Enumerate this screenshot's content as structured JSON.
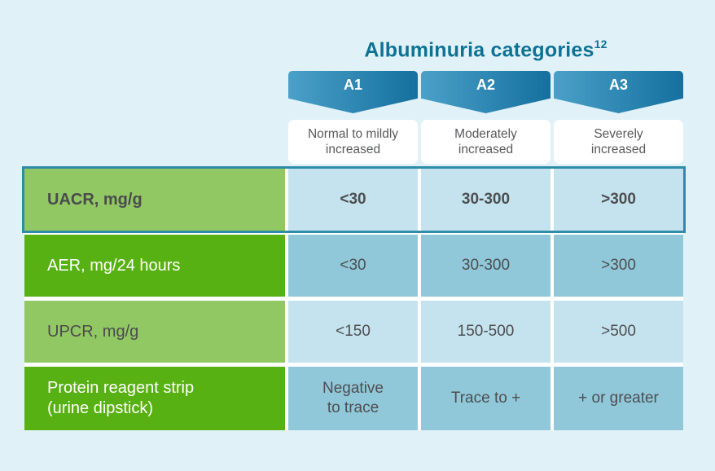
{
  "title": {
    "text": "Albuminuria categories",
    "superscript": "12"
  },
  "header": {
    "bands": [
      {
        "label": "A1"
      },
      {
        "label": "A2"
      },
      {
        "label": "A3"
      }
    ],
    "descriptions": [
      "Normal to mildly\nincreased",
      "Moderately\nincreased",
      "Severely\nincreased"
    ]
  },
  "table": {
    "rows": [
      {
        "label": "UACR, mg/g",
        "values": [
          "<30",
          "30-300",
          ">300"
        ]
      },
      {
        "label": "AER, mg/24 hours",
        "values": [
          "<30",
          "30-300",
          ">300"
        ]
      },
      {
        "label": "UPCR, mg/g",
        "values": [
          "<150",
          "150-500",
          ">500"
        ]
      },
      {
        "label": "Protein reagent strip\n(urine dipstick)",
        "values": [
          "Negative\nto trace",
          "Trace to +",
          "+ or greater"
        ]
      }
    ]
  },
  "chart_data": {
    "type": "table",
    "title": "Albuminuria categories",
    "title_superscript": "12",
    "columns": [
      "A1",
      "A2",
      "A3"
    ],
    "column_descriptions": [
      "Normal to mildly increased",
      "Moderately increased",
      "Severely increased"
    ],
    "rows": [
      {
        "label": "UACR, mg/g",
        "values": [
          "<30",
          "30-300",
          ">300"
        ],
        "highlighted": true
      },
      {
        "label": "AER, mg/24 hours",
        "values": [
          "<30",
          "30-300",
          ">300"
        ],
        "highlighted": false
      },
      {
        "label": "UPCR, mg/g",
        "values": [
          "<150",
          "150-500",
          ">500"
        ],
        "highlighted": false
      },
      {
        "label": "Protein reagent strip (urine dipstick)",
        "values": [
          "Negative to trace",
          "Trace to +",
          "+ or greater"
        ],
        "highlighted": false
      }
    ]
  },
  "colors": {
    "background": "#e1f1f8",
    "title_text": "#0e7295",
    "band_gradient_start": "#4aa0c8",
    "band_gradient_end": "#15709f",
    "band_text": "#ffffff",
    "description_box": "#ffffff",
    "description_text": "#58595b",
    "light_green": "#92c864",
    "dark_green": "#58b112",
    "light_blue": "#c4e3ee",
    "medium_blue": "#90c8da",
    "highlight_border": "#2e8ca8",
    "value_text": "#4d4e50"
  }
}
